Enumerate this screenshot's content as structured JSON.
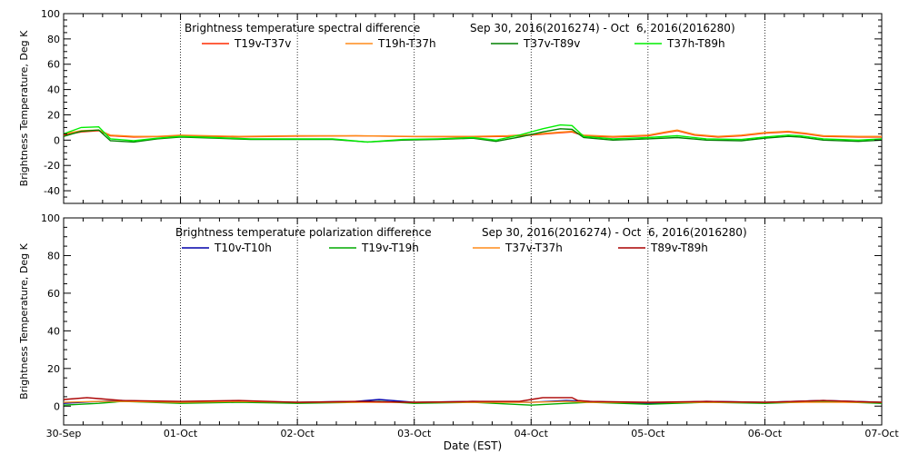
{
  "xlabel": "Date (EST)",
  "x_ticks": [
    "30-Sep",
    "01-Oct",
    "02-Oct",
    "03-Oct",
    "04-Oct",
    "05-Oct",
    "06-Oct",
    "07-Oct"
  ],
  "chart_data": [
    {
      "type": "line",
      "title": "Brightness temperature spectral difference",
      "date_range": "Sep 30, 2016(2016274) - Oct  6, 2016(2016280)",
      "ylabel": "Brightness Temperature, Deg K",
      "xlim": [
        0,
        7
      ],
      "ylim": [
        -50,
        100
      ],
      "y_ticks": [
        -40,
        -20,
        0,
        20,
        40,
        60,
        80,
        100
      ],
      "x_unit": "days since 30-Sep",
      "grid": "vertical dotted at day boundaries",
      "series": [
        {
          "name": "T19v-T37v",
          "color": "#ff2a00",
          "x": [
            0,
            0.15,
            0.3,
            0.4,
            0.6,
            0.8,
            1.0,
            1.5,
            2.0,
            2.5,
            3.0,
            3.5,
            3.8,
            4.0,
            4.2,
            4.35,
            4.45,
            4.7,
            5.0,
            5.15,
            5.25,
            5.4,
            5.6,
            5.8,
            6.0,
            6.2,
            6.35,
            6.5,
            6.8,
            7.0
          ],
          "values": [
            4,
            6.5,
            7.5,
            3.5,
            2.5,
            2.8,
            3.5,
            2.6,
            3.2,
            3.4,
            2.8,
            2.6,
            3.0,
            4.0,
            5.5,
            6.5,
            3.5,
            2.5,
            3.5,
            6.0,
            7.5,
            4.0,
            2.5,
            3.5,
            5.5,
            6.5,
            5.0,
            3.0,
            2.5,
            2.5
          ]
        },
        {
          "name": "T19h-T37h",
          "color": "#ff8c1a",
          "x": [
            0,
            0.15,
            0.3,
            0.4,
            0.6,
            0.8,
            1.0,
            1.5,
            2.0,
            2.5,
            3.0,
            3.5,
            3.8,
            4.0,
            4.2,
            4.35,
            4.45,
            4.7,
            5.0,
            5.15,
            5.25,
            5.4,
            5.6,
            5.8,
            6.0,
            6.2,
            6.35,
            6.5,
            6.8,
            7.0
          ],
          "values": [
            5,
            7.5,
            8,
            4,
            3,
            3,
            4,
            3,
            3.5,
            3.5,
            3,
            3,
            3.5,
            4.5,
            6.0,
            7.0,
            4.0,
            3.0,
            4.0,
            6.5,
            8.0,
            4.5,
            3.0,
            4.0,
            6.0,
            7.0,
            5.5,
            3.5,
            3.0,
            3.0
          ]
        },
        {
          "name": "T37v-T89v",
          "color": "#008000",
          "x": [
            0,
            0.15,
            0.3,
            0.4,
            0.6,
            0.8,
            1.0,
            1.3,
            1.6,
            2.0,
            2.3,
            2.6,
            2.9,
            3.2,
            3.5,
            3.7,
            3.9,
            4.1,
            4.25,
            4.35,
            4.45,
            4.7,
            5.0,
            5.25,
            5.5,
            5.8,
            6.0,
            6.2,
            6.3,
            6.5,
            6.8,
            7.0
          ],
          "values": [
            3,
            7,
            8,
            -0.5,
            -1.5,
            1,
            2.5,
            1.5,
            0.5,
            0.5,
            0.5,
            -1.5,
            0,
            0.5,
            1.5,
            -1,
            2.5,
            6.5,
            9,
            8.5,
            2,
            0,
            1,
            2,
            0,
            -0.5,
            1.5,
            3,
            2.5,
            0,
            -1,
            0
          ]
        },
        {
          "name": "T37h-T89h",
          "color": "#00ee00",
          "x": [
            0,
            0.15,
            0.3,
            0.4,
            0.6,
            0.8,
            1.0,
            1.3,
            1.6,
            2.0,
            2.3,
            2.6,
            2.9,
            3.2,
            3.5,
            3.7,
            3.9,
            4.1,
            4.25,
            4.35,
            4.45,
            4.7,
            5.0,
            5.25,
            5.5,
            5.8,
            6.0,
            6.2,
            6.3,
            6.5,
            6.8,
            7.0
          ],
          "values": [
            5,
            10,
            10.5,
            1,
            -0.5,
            1.5,
            3,
            2,
            1,
            1,
            1,
            -1.5,
            0.5,
            1,
            2,
            0,
            4,
            9,
            12,
            11.5,
            3,
            1,
            2,
            3.5,
            1,
            0.5,
            2.5,
            4,
            3.5,
            1,
            0,
            1
          ]
        }
      ]
    },
    {
      "type": "line",
      "title": "Brightness temperature polarization difference",
      "date_range": "Sep 30, 2016(2016274) - Oct  6, 2016(2016280)",
      "ylabel": "Brightness Temperature, Deg K",
      "xlim": [
        0,
        7
      ],
      "ylim": [
        -10,
        100
      ],
      "y_ticks": [
        0,
        20,
        40,
        60,
        80,
        100
      ],
      "x_unit": "days since 30-Sep",
      "grid": "vertical dotted at day boundaries",
      "series": [
        {
          "name": "T10v-T10h",
          "color": "#0000aa",
          "x": [
            0,
            0.3,
            0.5,
            1.0,
            1.5,
            2.0,
            2.5,
            2.7,
            3.0,
            3.5,
            4.0,
            4.3,
            4.5,
            5.0,
            5.5,
            6.0,
            6.5,
            7.0
          ],
          "values": [
            1.5,
            2.5,
            3,
            2,
            2.5,
            2,
            2.5,
            3.5,
            2,
            2.5,
            2,
            3,
            2.5,
            1.5,
            2.5,
            2,
            3,
            2
          ]
        },
        {
          "name": "T19v-T19h",
          "color": "#00aa00",
          "x": [
            0,
            0.3,
            0.5,
            1.0,
            1.5,
            2.0,
            2.5,
            2.7,
            3.0,
            3.5,
            4.0,
            4.3,
            4.5,
            5.0,
            5.5,
            6.0,
            6.5,
            7.0
          ],
          "values": [
            0.5,
            1.5,
            2.5,
            1.5,
            2,
            1.5,
            2,
            2.5,
            1.5,
            2,
            0.5,
            1.5,
            2,
            1,
            2,
            1.5,
            2.5,
            1.5
          ]
        },
        {
          "name": "T37v-T37h",
          "color": "#ff8c1a",
          "x": [
            0,
            0.3,
            0.5,
            1.0,
            1.5,
            2.0,
            2.5,
            3.0,
            3.5,
            4.0,
            4.3,
            4.5,
            5.0,
            5.5,
            6.0,
            6.5,
            7.0
          ],
          "values": [
            2,
            2.5,
            2.5,
            2,
            2.5,
            2,
            2,
            2,
            2,
            2,
            2.5,
            2,
            2,
            2,
            2,
            2,
            2
          ]
        },
        {
          "name": "T89v-T89h",
          "color": "#aa0000",
          "x": [
            0,
            0.2,
            0.3,
            0.5,
            1.0,
            1.5,
            2.0,
            2.5,
            3.0,
            3.5,
            3.9,
            4.0,
            4.1,
            4.35,
            4.4,
            4.5,
            5.0,
            5.5,
            6.0,
            6.5,
            7.0
          ],
          "values": [
            3.5,
            4.5,
            4,
            3,
            2.5,
            3,
            2,
            2.5,
            2,
            2.5,
            2.5,
            3.5,
            4.5,
            4.5,
            3,
            2.5,
            2,
            2.5,
            2,
            3,
            2
          ]
        }
      ]
    }
  ]
}
